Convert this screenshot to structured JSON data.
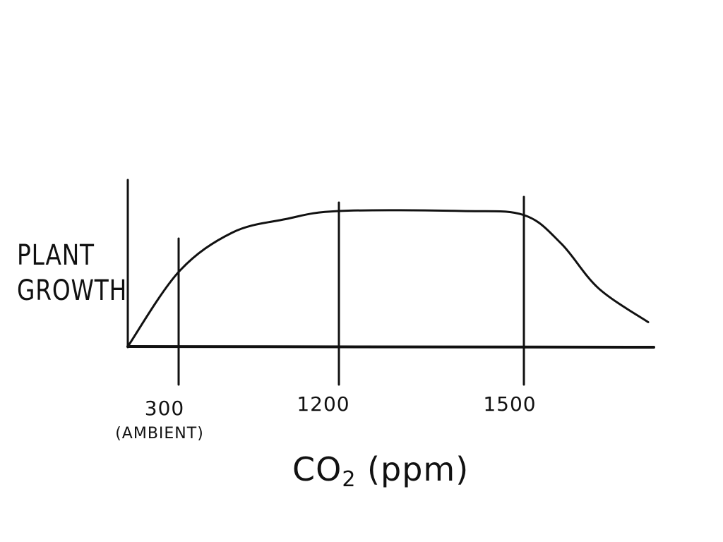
{
  "chart_data": {
    "type": "line",
    "ylabel_lines": [
      "PLANT",
      "GROWTH"
    ],
    "xlabel_main": "CO",
    "xlabel_sub": "2",
    "xlabel_unit": "(ppm)",
    "ticks": [
      {
        "value": 300,
        "label": "300",
        "sublabel": "(AMBIENT)"
      },
      {
        "value": 1200,
        "label": "1200",
        "sublabel": ""
      },
      {
        "value": 1500,
        "label": "1500",
        "sublabel": ""
      }
    ],
    "series": [
      {
        "x": [
          0,
          300,
          600,
          900,
          1200,
          1400,
          1500,
          1650,
          1800,
          2000
        ],
        "y": [
          0,
          0.55,
          0.84,
          0.94,
          1.0,
          1.0,
          0.97,
          0.76,
          0.43,
          0.18
        ]
      }
    ],
    "grid": false,
    "legend": "none"
  }
}
